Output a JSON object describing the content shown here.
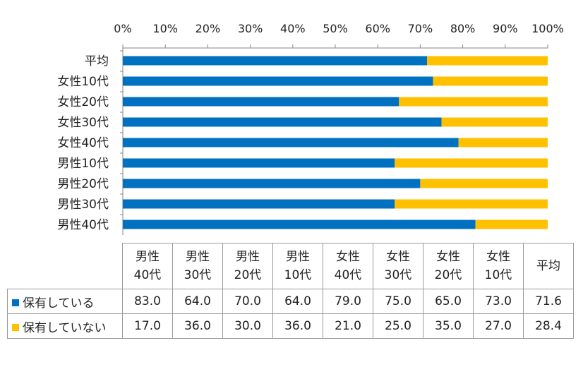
{
  "colors": {
    "owns": "#0070c0",
    "not_owns": "#ffc000",
    "axis": "#868686"
  },
  "chart_data": {
    "type": "bar",
    "orientation": "horizontal",
    "stacked": "percent",
    "categories": [
      "平均",
      "女性10代",
      "女性20代",
      "女性30代",
      "女性40代",
      "男性10代",
      "男性20代",
      "男性30代",
      "男性40代"
    ],
    "series": [
      {
        "name": "保有している",
        "values": [
          71.6,
          73.0,
          65.0,
          75.0,
          79.0,
          64.0,
          70.0,
          64.0,
          83.0
        ]
      },
      {
        "name": "保有していない",
        "values": [
          28.4,
          27.0,
          35.0,
          25.0,
          21.0,
          36.0,
          30.0,
          36.0,
          17.0
        ]
      }
    ],
    "xlim": [
      0,
      100
    ],
    "x_ticks": [
      "0%",
      "10%",
      "20%",
      "30%",
      "40%",
      "50%",
      "60%",
      "70%",
      "80%",
      "90%",
      "100%"
    ],
    "x_axis_position": "top",
    "grid": false
  },
  "table": {
    "headers": [
      [
        "男性",
        "40代"
      ],
      [
        "男性",
        "30代"
      ],
      [
        "男性",
        "20代"
      ],
      [
        "男性",
        "10代"
      ],
      [
        "女性",
        "40代"
      ],
      [
        "女性",
        "30代"
      ],
      [
        "女性",
        "20代"
      ],
      [
        "女性",
        "10代"
      ],
      [
        "平均",
        ""
      ]
    ],
    "rows": [
      {
        "label": "保有している",
        "values": [
          "83.0",
          "64.0",
          "70.0",
          "64.0",
          "79.0",
          "75.0",
          "65.0",
          "73.0",
          "71.6"
        ]
      },
      {
        "label": "保有していない",
        "values": [
          "17.0",
          "36.0",
          "30.0",
          "36.0",
          "21.0",
          "25.0",
          "35.0",
          "27.0",
          "28.4"
        ]
      }
    ]
  }
}
